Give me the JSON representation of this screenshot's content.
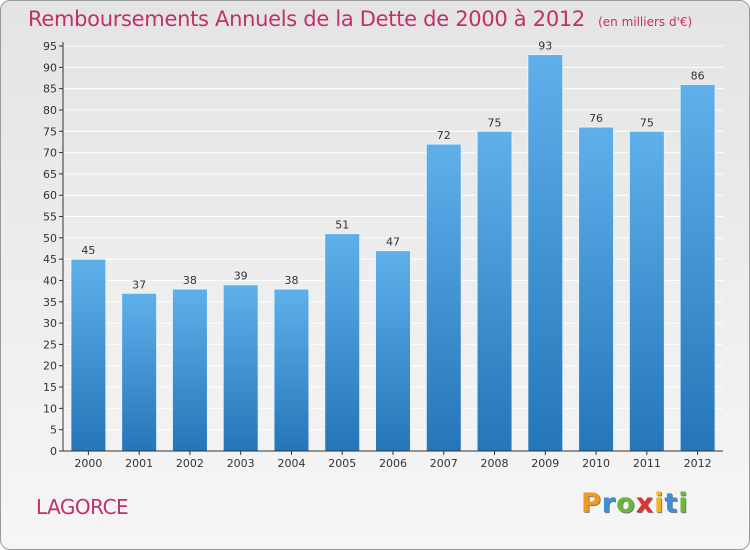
{
  "title": "Remboursements Annuels de la Dette de 2000 à 2012",
  "subtitle": "(en milliers d'€)",
  "commune": "LAGORCE",
  "logo": {
    "letters": [
      "P",
      "r",
      "o",
      "x",
      "i",
      "t",
      "i"
    ],
    "colors": [
      "#f29a1f",
      "#3d8fd1",
      "#6ab53a",
      "#e2312b",
      "#f2b21f",
      "#3d8fd1",
      "#6ab53a"
    ]
  },
  "colors": {
    "bar_top": "#5fb0ea",
    "bar_bottom": "#2576b9",
    "axis": "#333333",
    "grid": "#ffffff",
    "title": "#c0306a"
  },
  "chart_data": {
    "type": "bar",
    "categories": [
      "2000",
      "2001",
      "2002",
      "2003",
      "2004",
      "2005",
      "2006",
      "2007",
      "2008",
      "2009",
      "2010",
      "2011",
      "2012"
    ],
    "values": [
      45,
      37,
      38,
      39,
      38,
      51,
      47,
      72,
      75,
      93,
      76,
      75,
      86
    ],
    "title": "Remboursements Annuels de la Dette de 2000 à 2012",
    "subtitle": "(en milliers d'€)",
    "xlabel": "",
    "ylabel": "",
    "ylim": [
      0,
      95
    ],
    "ytick_step": 5,
    "grid": true,
    "data_labels": true
  }
}
